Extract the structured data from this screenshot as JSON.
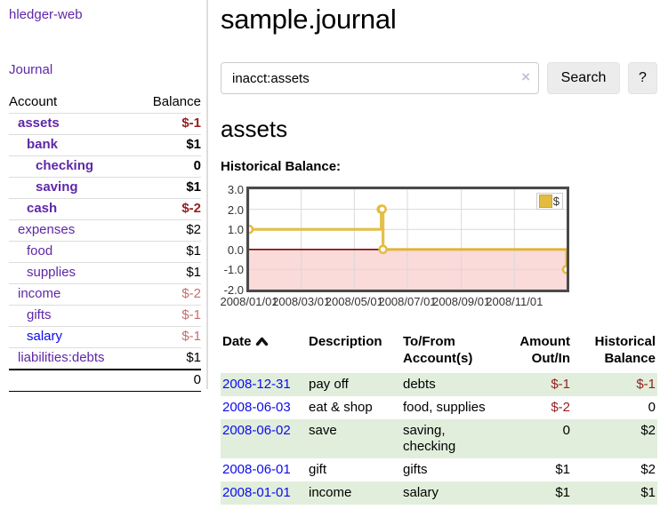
{
  "app": {
    "title": "hledger-web"
  },
  "colors": {
    "link_purple": "#5f27a8",
    "link_blue": "#0b0bee",
    "negative_strong": "#962020",
    "negative_weak": "#c36f6f",
    "row_green": "#e1eedb",
    "chart_gold": "#e3bc3f",
    "chart_negative_band": "#fbdada",
    "chart_zero_line": "#8b0000"
  },
  "sidebar": {
    "journal_link": "Journal",
    "accounts_table": {
      "headers": {
        "account": "Account",
        "balance": "Balance"
      },
      "rows": [
        {
          "account": "assets",
          "balance": "$-1",
          "indent": 1,
          "inacct": true,
          "link_color": "purple"
        },
        {
          "account": "bank",
          "balance": "$1",
          "indent": 2,
          "inacct": true,
          "link_color": "purple"
        },
        {
          "account": "checking",
          "balance": "0",
          "indent": 3,
          "inacct": true,
          "link_color": "purple"
        },
        {
          "account": "saving",
          "balance": "$1",
          "indent": 3,
          "inacct": true,
          "link_color": "purple"
        },
        {
          "account": "cash",
          "balance": "$-2",
          "indent": 2,
          "inacct": true,
          "link_color": "purple"
        },
        {
          "account": "expenses",
          "balance": "$2",
          "indent": 1,
          "inacct": false,
          "link_color": "purple"
        },
        {
          "account": "food",
          "balance": "$1",
          "indent": 2,
          "inacct": false,
          "link_color": "purple"
        },
        {
          "account": "supplies",
          "balance": "$1",
          "indent": 2,
          "inacct": false,
          "link_color": "purple"
        },
        {
          "account": "income",
          "balance": "$-2",
          "indent": 1,
          "inacct": false,
          "link_color": "purple"
        },
        {
          "account": "gifts",
          "balance": "$-1",
          "indent": 2,
          "inacct": false,
          "link_color": "purple"
        },
        {
          "account": "salary",
          "balance": "$-1",
          "indent": 2,
          "inacct": false,
          "link_color": "blue"
        },
        {
          "account": "liabilities:debts",
          "balance": "$1",
          "indent": 1,
          "inacct": false,
          "link_color": "purple"
        }
      ],
      "total": "0"
    }
  },
  "main": {
    "title": "sample.journal",
    "search": {
      "value": "inacct:assets",
      "clear_icon": "×",
      "search_button": "Search",
      "help_button": "?"
    },
    "account_heading": "assets",
    "chart_label": "Historical Balance:"
  },
  "chart_data": {
    "type": "line",
    "step": true,
    "title": "Historical Balance:",
    "legend": {
      "label": "$",
      "position": "top-right"
    },
    "series": [
      {
        "name": "$",
        "points": [
          [
            "2008-01-01",
            1
          ],
          [
            "2008-06-01",
            2
          ],
          [
            "2008-06-02",
            2
          ],
          [
            "2008-06-03",
            0
          ],
          [
            "2008-12-31",
            -1
          ]
        ]
      }
    ],
    "xlim": [
      "2008-01-01",
      "2008-12-31"
    ],
    "ylim": [
      -2,
      3
    ],
    "yticks": [
      {
        "v": 3,
        "label": "3.0"
      },
      {
        "v": 2,
        "label": "2.0"
      },
      {
        "v": 1,
        "label": "1.0"
      },
      {
        "v": 0,
        "label": "0.0"
      },
      {
        "v": -1,
        "label": "-1.0"
      },
      {
        "v": -2,
        "label": "-2.0"
      }
    ],
    "xticks": [
      {
        "d": "2008-01-01",
        "label": "2008/01/01"
      },
      {
        "d": "2008-03-01",
        "label": "2008/03/01"
      },
      {
        "d": "2008-05-01",
        "label": "2008/05/01"
      },
      {
        "d": "2008-07-01",
        "label": "2008/07/01"
      },
      {
        "d": "2008-09-01",
        "label": "2008/09/01"
      },
      {
        "d": "2008-11-01",
        "label": "2008/11/01"
      }
    ],
    "grid": true,
    "negative_region": {
      "from": -2,
      "to": 0
    }
  },
  "register_table": {
    "headers": {
      "date": "Date",
      "description": "Description",
      "accounts_line1": "To/From",
      "accounts_line2": "Account(s)",
      "amount_line1": "Amount",
      "amount_line2": "Out/In",
      "balance_line1": "Historical",
      "balance_line2": "Balance"
    },
    "rows": [
      {
        "date": "2008-12-31",
        "description": "pay off",
        "accounts": "debts",
        "amount": "$-1",
        "balance": "$-1"
      },
      {
        "date": "2008-06-03",
        "description": "eat & shop",
        "accounts": "food, supplies",
        "amount": "$-2",
        "balance": "0"
      },
      {
        "date": "2008-06-02",
        "description": "save",
        "accounts": "saving, checking",
        "amount": "0",
        "balance": "$2"
      },
      {
        "date": "2008-06-01",
        "description": "gift",
        "accounts": "gifts",
        "amount": "$1",
        "balance": "$2"
      },
      {
        "date": "2008-01-01",
        "description": "income",
        "accounts": "salary",
        "amount": "$1",
        "balance": "$1"
      }
    ]
  }
}
